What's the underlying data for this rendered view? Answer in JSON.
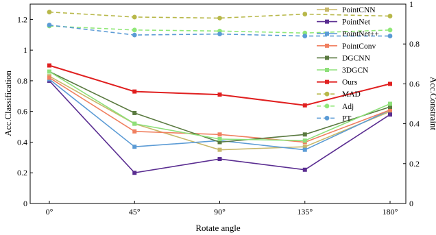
{
  "chart_data": {
    "type": "line",
    "title": "",
    "xlabel": "Rotate angle",
    "ylabel_left": "Acc.Classification",
    "ylabel_right": "Acc.Constraint",
    "categories": [
      "0°",
      "45°",
      "90°",
      "135°",
      "180°"
    ],
    "ylim_left": [
      0,
      1.3
    ],
    "yticks_left": [
      "0",
      "0.2",
      "0.4",
      "0.6",
      "0.8",
      "1",
      "1.2"
    ],
    "ylim_right": [
      0,
      1.0
    ],
    "yticks_right": [
      "0",
      "0.2",
      "0.4",
      "0.6",
      "0.8",
      "1"
    ],
    "grid": false,
    "legend_position": "top-right",
    "series": [
      {
        "name": "PointCNN",
        "axis": "left",
        "color": "#c8b86a",
        "style": "solid",
        "marker": "square",
        "values": [
          0.83,
          0.52,
          0.35,
          0.37,
          0.6
        ]
      },
      {
        "name": "PointNet",
        "axis": "left",
        "color": "#5a2d91",
        "style": "solid",
        "marker": "square",
        "values": [
          0.8,
          0.2,
          0.29,
          0.22,
          0.58
        ]
      },
      {
        "name": "PointNet++",
        "axis": "left",
        "color": "#5b9bd5",
        "style": "solid",
        "marker": "square",
        "values": [
          0.81,
          0.37,
          0.41,
          0.35,
          0.61
        ]
      },
      {
        "name": "PointConv",
        "axis": "left",
        "color": "#f08060",
        "style": "solid",
        "marker": "square",
        "values": [
          0.82,
          0.47,
          0.45,
          0.4,
          0.61
        ]
      },
      {
        "name": "DGCNN",
        "axis": "left",
        "color": "#5a7a40",
        "style": "solid",
        "marker": "square",
        "values": [
          0.86,
          0.59,
          0.4,
          0.45,
          0.63
        ]
      },
      {
        "name": "3DGCN",
        "axis": "left",
        "color": "#8ee07a",
        "style": "solid",
        "marker": "square",
        "values": [
          0.86,
          0.52,
          0.42,
          0.41,
          0.65
        ]
      },
      {
        "name": "Ours",
        "axis": "left",
        "color": "#e02020",
        "style": "solid",
        "marker": "square",
        "values": [
          0.9,
          0.73,
          0.71,
          0.64,
          0.78
        ]
      },
      {
        "name": "MAD",
        "axis": "right",
        "color": "#b8b84a",
        "style": "dashed",
        "marker": "circle",
        "values": [
          0.96,
          0.935,
          0.93,
          0.95,
          0.94
        ]
      },
      {
        "name": "Adj",
        "axis": "right",
        "color": "#90e878",
        "style": "dashed",
        "marker": "circle",
        "values": [
          0.89,
          0.87,
          0.865,
          0.855,
          0.87
        ]
      },
      {
        "name": "PT",
        "axis": "right",
        "color": "#5b9bd5",
        "style": "dashed",
        "marker": "circle",
        "values": [
          0.895,
          0.845,
          0.85,
          0.84,
          0.84
        ]
      }
    ]
  }
}
